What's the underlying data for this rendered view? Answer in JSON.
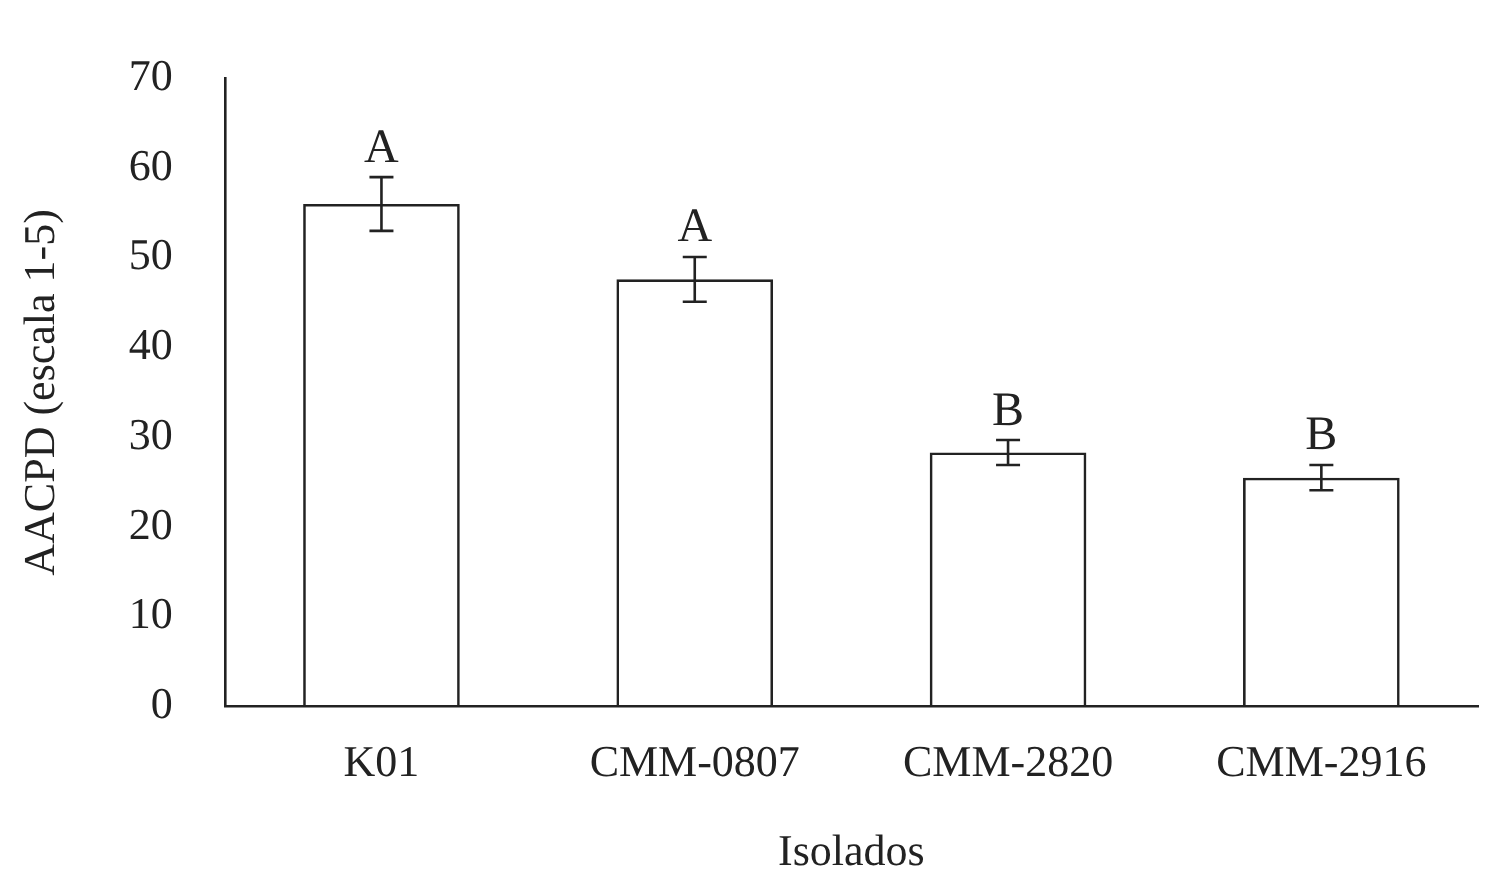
{
  "chart_data": {
    "type": "bar",
    "xlabel": "Isolados",
    "ylabel": "AACPD (escala 1-5)",
    "categories": [
      "K01",
      "CMM-0807",
      "CMM-2820",
      "CMM-2916"
    ],
    "values": [
      56,
      47.6,
      28.3,
      25.5
    ],
    "errors": [
      3,
      2.5,
      1.4,
      1.4
    ],
    "color": "#222222",
    "ylim": [
      0,
      70
    ],
    "yticks": [
      0,
      10,
      20,
      30,
      40,
      50,
      60,
      70
    ],
    "grid": false,
    "annotations": [
      {
        "text": "A",
        "x": "K01",
        "y": 59
      },
      {
        "text": "A",
        "x": "CMM-0807",
        "y": 50.2
      },
      {
        "text": "B",
        "x": "CMM-2820",
        "y": 29.7
      },
      {
        "text": "B",
        "x": "CMM-2916",
        "y": 27
      }
    ]
  }
}
